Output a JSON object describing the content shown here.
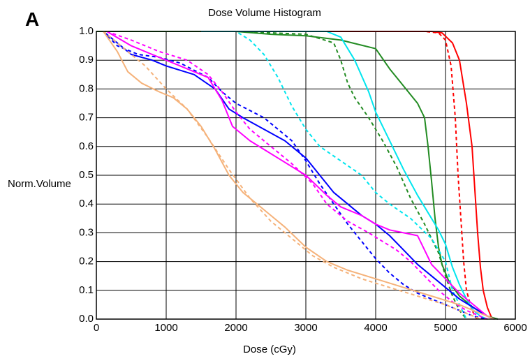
{
  "panel_label": "A",
  "chart_data": {
    "type": "line",
    "title": "Dose Volume Histogram",
    "xlabel": "Dose (cGy)",
    "ylabel": "Norm.Volume",
    "xlim": [
      0,
      6000
    ],
    "ylim": [
      0,
      1.0
    ],
    "xticks": [
      0,
      1000,
      2000,
      3000,
      4000,
      5000,
      6000
    ],
    "yticks": [
      0.0,
      0.1,
      0.2,
      0.3,
      0.4,
      0.5,
      0.6,
      0.7,
      0.8,
      0.9,
      1.0
    ],
    "ytick_labels": [
      "0.0",
      "0.1",
      "0.2",
      "0.3",
      "0.4",
      "0.5",
      "0.6",
      "0.7",
      "0.8",
      "0.9",
      "1.0"
    ],
    "grid": true,
    "series": [
      {
        "color": "#ff0000",
        "dash": "solid",
        "points": [
          [
            3000,
            1.0
          ],
          [
            4800,
            1.0
          ],
          [
            4950,
            0.995
          ],
          [
            5100,
            0.96
          ],
          [
            5200,
            0.9
          ],
          [
            5300,
            0.75
          ],
          [
            5380,
            0.6
          ],
          [
            5420,
            0.45
          ],
          [
            5460,
            0.3
          ],
          [
            5500,
            0.18
          ],
          [
            5540,
            0.1
          ],
          [
            5600,
            0.04
          ],
          [
            5660,
            0.005
          ],
          [
            5700,
            0.0
          ]
        ]
      },
      {
        "color": "#ff0000",
        "dash": "dashed",
        "points": [
          [
            3200,
            1.0
          ],
          [
            4700,
            1.0
          ],
          [
            4900,
            0.995
          ],
          [
            5000,
            0.97
          ],
          [
            5080,
            0.88
          ],
          [
            5140,
            0.7
          ],
          [
            5180,
            0.5
          ],
          [
            5220,
            0.35
          ],
          [
            5260,
            0.2
          ],
          [
            5300,
            0.1
          ],
          [
            5380,
            0.03
          ],
          [
            5450,
            0.0
          ]
        ]
      },
      {
        "color": "#228b22",
        "dash": "solid",
        "points": [
          [
            0,
            1.0
          ],
          [
            2000,
            1.0
          ],
          [
            2500,
            0.99
          ],
          [
            3000,
            0.985
          ],
          [
            3500,
            0.97
          ],
          [
            4000,
            0.94
          ],
          [
            4200,
            0.87
          ],
          [
            4400,
            0.81
          ],
          [
            4600,
            0.75
          ],
          [
            4700,
            0.7
          ],
          [
            4750,
            0.6
          ],
          [
            4800,
            0.48
          ],
          [
            4850,
            0.35
          ],
          [
            4900,
            0.25
          ],
          [
            4950,
            0.19
          ],
          [
            5050,
            0.13
          ],
          [
            5200,
            0.08
          ],
          [
            5400,
            0.04
          ],
          [
            5600,
            0.01
          ],
          [
            5750,
            0.0
          ]
        ]
      },
      {
        "color": "#228b22",
        "dash": "dashed",
        "points": [
          [
            1000,
            1.0
          ],
          [
            2000,
            1.0
          ],
          [
            3000,
            0.99
          ],
          [
            3400,
            0.96
          ],
          [
            3500,
            0.9
          ],
          [
            3600,
            0.82
          ],
          [
            3700,
            0.77
          ],
          [
            3900,
            0.7
          ],
          [
            4100,
            0.62
          ],
          [
            4300,
            0.53
          ],
          [
            4500,
            0.42
          ],
          [
            4700,
            0.33
          ],
          [
            4900,
            0.23
          ],
          [
            5000,
            0.15
          ],
          [
            5100,
            0.08
          ],
          [
            5200,
            0.03
          ],
          [
            5300,
            0.0
          ]
        ]
      },
      {
        "color": "#00e5ee",
        "dash": "solid",
        "points": [
          [
            1500,
            1.0
          ],
          [
            3300,
            1.0
          ],
          [
            3500,
            0.98
          ],
          [
            3700,
            0.9
          ],
          [
            3900,
            0.79
          ],
          [
            4000,
            0.72
          ],
          [
            4200,
            0.62
          ],
          [
            4400,
            0.52
          ],
          [
            4600,
            0.43
          ],
          [
            4800,
            0.35
          ],
          [
            4900,
            0.31
          ],
          [
            5000,
            0.26
          ],
          [
            5100,
            0.18
          ],
          [
            5200,
            0.12
          ],
          [
            5300,
            0.07
          ],
          [
            5400,
            0.03
          ],
          [
            5500,
            0.01
          ],
          [
            5600,
            0.0
          ]
        ]
      },
      {
        "color": "#00e5ee",
        "dash": "dashed",
        "points": [
          [
            1500,
            1.0
          ],
          [
            2000,
            1.0
          ],
          [
            2200,
            0.97
          ],
          [
            2400,
            0.92
          ],
          [
            2600,
            0.84
          ],
          [
            2800,
            0.74
          ],
          [
            3000,
            0.66
          ],
          [
            3200,
            0.6
          ],
          [
            3500,
            0.55
          ],
          [
            3800,
            0.5
          ],
          [
            4000,
            0.44
          ],
          [
            4200,
            0.4
          ],
          [
            4500,
            0.35
          ],
          [
            4800,
            0.28
          ],
          [
            5000,
            0.2
          ],
          [
            5100,
            0.1
          ],
          [
            5200,
            0.05
          ],
          [
            5300,
            0.0
          ]
        ]
      },
      {
        "color": "#0000ff",
        "dash": "solid",
        "points": [
          [
            100,
            1.0
          ],
          [
            300,
            0.96
          ],
          [
            500,
            0.92
          ],
          [
            800,
            0.9
          ],
          [
            1000,
            0.88
          ],
          [
            1400,
            0.85
          ],
          [
            1700,
            0.8
          ],
          [
            1900,
            0.73
          ],
          [
            2100,
            0.7
          ],
          [
            2400,
            0.66
          ],
          [
            2700,
            0.62
          ],
          [
            3000,
            0.56
          ],
          [
            3200,
            0.5
          ],
          [
            3400,
            0.44
          ],
          [
            3600,
            0.4
          ],
          [
            3800,
            0.36
          ],
          [
            4000,
            0.33
          ],
          [
            4200,
            0.29
          ],
          [
            4400,
            0.24
          ],
          [
            4600,
            0.19
          ],
          [
            4800,
            0.15
          ],
          [
            5000,
            0.11
          ],
          [
            5200,
            0.07
          ],
          [
            5400,
            0.04
          ],
          [
            5600,
            0.01
          ],
          [
            5700,
            0.0
          ]
        ]
      },
      {
        "color": "#0000ff",
        "dash": "dashed",
        "points": [
          [
            100,
            1.0
          ],
          [
            300,
            0.95
          ],
          [
            600,
            0.92
          ],
          [
            900,
            0.91
          ],
          [
            1200,
            0.89
          ],
          [
            1600,
            0.84
          ],
          [
            1800,
            0.79
          ],
          [
            2000,
            0.75
          ],
          [
            2400,
            0.7
          ],
          [
            2800,
            0.62
          ],
          [
            3000,
            0.55
          ],
          [
            3200,
            0.47
          ],
          [
            3400,
            0.4
          ],
          [
            3600,
            0.33
          ],
          [
            3800,
            0.27
          ],
          [
            4000,
            0.21
          ],
          [
            4200,
            0.16
          ],
          [
            4400,
            0.12
          ],
          [
            4600,
            0.09
          ],
          [
            4800,
            0.07
          ],
          [
            5000,
            0.05
          ],
          [
            5200,
            0.03
          ],
          [
            5400,
            0.01
          ],
          [
            5600,
            0.0
          ]
        ]
      },
      {
        "color": "#ff00ff",
        "dash": "solid",
        "points": [
          [
            150,
            1.0
          ],
          [
            500,
            0.95
          ],
          [
            800,
            0.92
          ],
          [
            1200,
            0.88
          ],
          [
            1600,
            0.84
          ],
          [
            1800,
            0.76
          ],
          [
            1950,
            0.67
          ],
          [
            2200,
            0.62
          ],
          [
            2600,
            0.56
          ],
          [
            3000,
            0.5
          ],
          [
            3300,
            0.43
          ],
          [
            3500,
            0.39
          ],
          [
            3800,
            0.36
          ],
          [
            4000,
            0.33
          ],
          [
            4200,
            0.31
          ],
          [
            4400,
            0.3
          ],
          [
            4600,
            0.29
          ],
          [
            4700,
            0.24
          ],
          [
            4800,
            0.19
          ],
          [
            5000,
            0.14
          ],
          [
            5200,
            0.09
          ],
          [
            5400,
            0.05
          ],
          [
            5600,
            0.01
          ],
          [
            5700,
            0.0
          ]
        ]
      },
      {
        "color": "#ff00ff",
        "dash": "dashed",
        "points": [
          [
            150,
            1.0
          ],
          [
            500,
            0.97
          ],
          [
            900,
            0.93
          ],
          [
            1300,
            0.9
          ],
          [
            1600,
            0.85
          ],
          [
            1800,
            0.79
          ],
          [
            2000,
            0.72
          ],
          [
            2200,
            0.66
          ],
          [
            2500,
            0.6
          ],
          [
            2800,
            0.54
          ],
          [
            3100,
            0.47
          ],
          [
            3300,
            0.4
          ],
          [
            3600,
            0.34
          ],
          [
            3900,
            0.3
          ],
          [
            4100,
            0.27
          ],
          [
            4300,
            0.24
          ],
          [
            4500,
            0.2
          ],
          [
            4700,
            0.15
          ],
          [
            4900,
            0.1
          ],
          [
            5100,
            0.06
          ],
          [
            5300,
            0.03
          ],
          [
            5500,
            0.01
          ],
          [
            5600,
            0.0
          ]
        ]
      },
      {
        "color": "#f5b27a",
        "dash": "solid",
        "points": [
          [
            100,
            1.0
          ],
          [
            300,
            0.93
          ],
          [
            450,
            0.86
          ],
          [
            650,
            0.82
          ],
          [
            900,
            0.79
          ],
          [
            1100,
            0.77
          ],
          [
            1300,
            0.73
          ],
          [
            1500,
            0.67
          ],
          [
            1700,
            0.59
          ],
          [
            1900,
            0.5
          ],
          [
            2100,
            0.44
          ],
          [
            2400,
            0.38
          ],
          [
            2700,
            0.32
          ],
          [
            3000,
            0.25
          ],
          [
            3300,
            0.2
          ],
          [
            3600,
            0.17
          ],
          [
            4000,
            0.14
          ],
          [
            4400,
            0.11
          ],
          [
            4800,
            0.08
          ],
          [
            5200,
            0.05
          ],
          [
            5500,
            0.02
          ],
          [
            5700,
            0.0
          ]
        ]
      },
      {
        "color": "#f5b27a",
        "dash": "dashed",
        "points": [
          [
            100,
            1.0
          ],
          [
            400,
            0.94
          ],
          [
            700,
            0.88
          ],
          [
            1000,
            0.8
          ],
          [
            1300,
            0.73
          ],
          [
            1600,
            0.63
          ],
          [
            1900,
            0.52
          ],
          [
            2200,
            0.42
          ],
          [
            2500,
            0.34
          ],
          [
            2800,
            0.28
          ],
          [
            3100,
            0.22
          ],
          [
            3400,
            0.18
          ],
          [
            3800,
            0.14
          ],
          [
            4200,
            0.11
          ],
          [
            4600,
            0.08
          ],
          [
            5000,
            0.05
          ],
          [
            5300,
            0.02
          ],
          [
            5500,
            0.0
          ]
        ]
      }
    ]
  }
}
